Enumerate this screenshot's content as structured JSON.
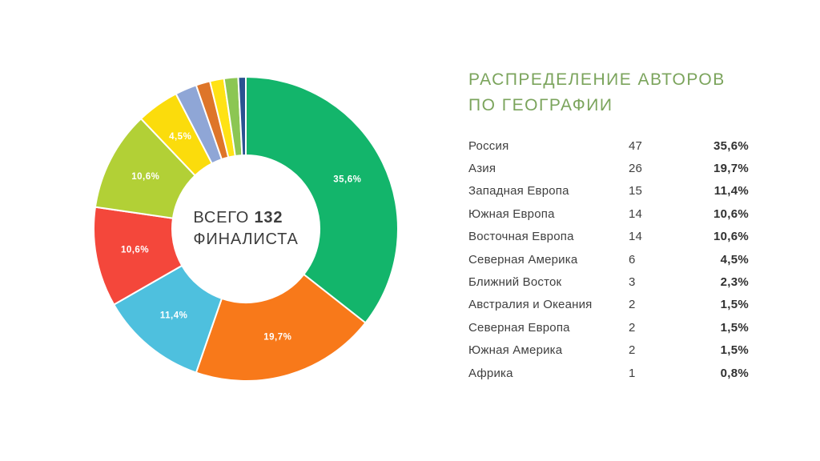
{
  "title": {
    "line1": "РАСПРЕДЕЛЕНИЕ АВТОРОВ",
    "line2": "ПО ГЕОГРАФИИ"
  },
  "colors": {
    "title_accent": "#7BA45C",
    "center_text": "#3d3d3d",
    "table_text": "#3f3f3f"
  },
  "center": {
    "prefix": "ВСЕГО",
    "total": "132",
    "suffix": "ФИНАЛИСТА"
  },
  "chart_data": {
    "type": "pie",
    "donut": true,
    "title": "РАСПРЕДЕЛЕНИЕ АВТОРОВ ПО ГЕОГРАФИИ",
    "center_label": "ВСЕГО 132 ФИНАЛИСТА",
    "total": 132,
    "start_angle_deg": 0,
    "direction": "clockwise",
    "legend_position": "right-table",
    "categories": [
      "Россия",
      "Азия",
      "Западная Европа",
      "Южная Европа",
      "Восточная Европа",
      "Северная Америка",
      "Ближний Восток",
      "Австралия и Океания",
      "Северная Европа",
      "Южная Америка",
      "Африка"
    ],
    "counts": [
      47,
      26,
      15,
      14,
      14,
      6,
      3,
      2,
      2,
      2,
      1
    ],
    "values_pct": [
      35.6,
      19.7,
      11.4,
      10.6,
      10.6,
      4.5,
      2.3,
      1.5,
      1.5,
      1.5,
      0.8
    ],
    "percent_labels": [
      "35,6%",
      "19,7%",
      "11,4%",
      "10,6%",
      "10,6%",
      "4,5%",
      "2,3%",
      "1,5%",
      "1,5%",
      "1,5%",
      "0,8%"
    ],
    "colors": [
      "#13B56B",
      "#F8791A",
      "#4EC0DE",
      "#F4473B",
      "#B2D036",
      "#FBDC0C",
      "#8FA6D6",
      "#DE7529",
      "#FFE215",
      "#8CC653",
      "#2A5291"
    ],
    "slice_label_min_pct": 4.0
  },
  "table": {
    "rows": [
      {
        "name": "Россия",
        "count": "47",
        "pct": "35,6%"
      },
      {
        "name": "Азия",
        "count": "26",
        "pct": "19,7%"
      },
      {
        "name": "Западная Европа",
        "count": "15",
        "pct": "11,4%"
      },
      {
        "name": "Южная Европа",
        "count": "14",
        "pct": "10,6%"
      },
      {
        "name": "Восточная Европа",
        "count": "14",
        "pct": "10,6%"
      },
      {
        "name": "Северная Америка",
        "count": "6",
        "pct": "4,5%"
      },
      {
        "name": "Ближний Восток",
        "count": "3",
        "pct": "2,3%"
      },
      {
        "name": "Австралия и Океания",
        "count": "2",
        "pct": "1,5%"
      },
      {
        "name": "Северная Европа",
        "count": "2",
        "pct": "1,5%"
      },
      {
        "name": "Южная Америка",
        "count": "2",
        "pct": "1,5%"
      },
      {
        "name": "Африка",
        "count": "1",
        "pct": "0,8%"
      }
    ]
  }
}
